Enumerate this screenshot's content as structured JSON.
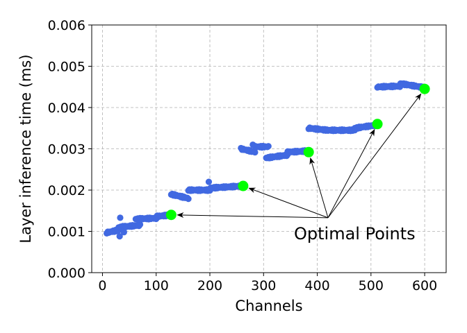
{
  "chart_data": {
    "type": "scatter",
    "title": "",
    "xlabel": "Channels",
    "ylabel": "Layer inference time (ms)",
    "xlim": [
      -20,
      640
    ],
    "ylim": [
      0,
      0.006
    ],
    "xticks": [
      0,
      100,
      200,
      300,
      400,
      500,
      600
    ],
    "yticks": [
      0.0,
      0.001,
      0.002,
      0.003,
      0.004,
      0.005,
      0.006
    ],
    "xtick_labels": [
      "0",
      "100",
      "200",
      "300",
      "400",
      "500",
      "600"
    ],
    "ytick_labels": [
      "0.000",
      "0.001",
      "0.002",
      "0.003",
      "0.004",
      "0.005",
      "0.006"
    ],
    "grid": true,
    "colors": {
      "points": "#4169e1",
      "optimal": "#00ff00",
      "grid": "#b0b0b0"
    },
    "series": [
      {
        "segments": [
          {
            "x_start": 8,
            "x_end": 30,
            "y_start": 0.00097,
            "y_end": 0.00103
          },
          {
            "x_start": 30,
            "x_end": 70,
            "y_start": 0.0011,
            "y_end": 0.00115
          },
          {
            "x_start": 62,
            "x_end": 100,
            "y_start": 0.0013,
            "y_end": 0.00132
          },
          {
            "x_start": 100,
            "x_end": 128,
            "y_start": 0.00136,
            "y_end": 0.0014
          },
          {
            "x_start": 128,
            "x_end": 160,
            "y_start": 0.0019,
            "y_end": 0.0018
          },
          {
            "x_start": 160,
            "x_end": 200,
            "y_start": 0.002,
            "y_end": 0.002
          },
          {
            "x_start": 200,
            "x_end": 262,
            "y_start": 0.00205,
            "y_end": 0.0021
          },
          {
            "x_start": 258,
            "x_end": 285,
            "y_start": 0.003,
            "y_end": 0.00292
          },
          {
            "x_start": 285,
            "x_end": 310,
            "y_start": 0.00305,
            "y_end": 0.00305
          },
          {
            "x_start": 305,
            "x_end": 345,
            "y_start": 0.00278,
            "y_end": 0.00285
          },
          {
            "x_start": 345,
            "x_end": 384,
            "y_start": 0.00292,
            "y_end": 0.00295
          },
          {
            "x_start": 384,
            "x_end": 420,
            "y_start": 0.0035,
            "y_end": 0.00345
          },
          {
            "x_start": 420,
            "x_end": 470,
            "y_start": 0.00345,
            "y_end": 0.00345
          },
          {
            "x_start": 470,
            "x_end": 512,
            "y_start": 0.0035,
            "y_end": 0.00358
          },
          {
            "x_start": 512,
            "x_end": 555,
            "y_start": 0.0045,
            "y_end": 0.00452
          },
          {
            "x_start": 555,
            "x_end": 600,
            "y_start": 0.00458,
            "y_end": 0.00448
          }
        ],
        "extra_points": [
          {
            "x": 32,
            "y": 0.00088
          },
          {
            "x": 33,
            "y": 0.00133
          },
          {
            "x": 40,
            "y": 0.00098
          },
          {
            "x": 198,
            "y": 0.0022
          },
          {
            "x": 280,
            "y": 0.0031
          }
        ]
      }
    ],
    "optimal_points": [
      {
        "x": 128,
        "y": 0.0014
      },
      {
        "x": 262,
        "y": 0.0021
      },
      {
        "x": 384,
        "y": 0.00292
      },
      {
        "x": 512,
        "y": 0.0036
      },
      {
        "x": 600,
        "y": 0.00445
      }
    ],
    "annotation": {
      "text": "Optimal Points",
      "anchor": {
        "x": 420,
        "y": 0.00133
      }
    }
  }
}
